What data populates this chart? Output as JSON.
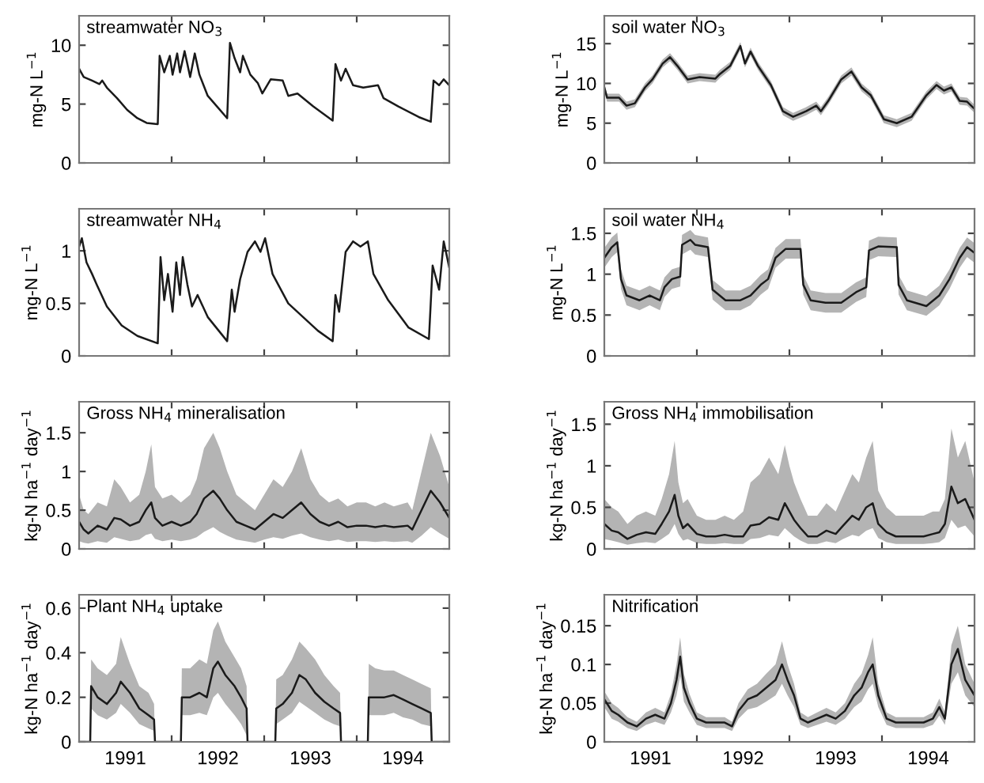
{
  "chart_data": [
    {
      "type": "line",
      "title": "streamwater NO$_{3}$",
      "ylabel": "mg-N L$^{−1}$",
      "xlim": [
        1991,
        1995
      ],
      "ylim": [
        0,
        12.5
      ],
      "yticks": [
        0,
        5,
        10
      ],
      "tick_labels": "y",
      "grid": false,
      "legend": false,
      "xticks": [
        {
          "value": 1992,
          "label": null
        },
        {
          "value": 1993,
          "label": null
        },
        {
          "value": 1994,
          "label": null
        }
      ],
      "series": [
        {
          "color": "#1a1a1a",
          "x": [
            1991.0,
            1991.05,
            1991.14,
            1991.22,
            1991.25,
            1991.3,
            1991.41,
            1991.52,
            1991.63,
            1991.73,
            1991.85,
            1991.87,
            1991.92,
            1991.98,
            1992.01,
            1992.06,
            1992.09,
            1992.14,
            1992.2,
            1992.25,
            1992.3,
            1992.39,
            1992.49,
            1992.6,
            1992.63,
            1992.68,
            1992.74,
            1992.77,
            1992.85,
            1992.93,
            1992.98,
            1993.07,
            1993.2,
            1993.26,
            1993.36,
            1993.53,
            1993.74,
            1993.77,
            1993.83,
            1993.88,
            1993.96,
            1994.07,
            1994.23,
            1994.29,
            1994.45,
            1994.67,
            1994.8,
            1994.83,
            1994.89,
            1994.94,
            1995.0
          ],
          "values": [
            8.0,
            7.3,
            7.0,
            6.7,
            7.0,
            6.4,
            5.5,
            4.5,
            3.8,
            3.4,
            3.3,
            9.1,
            7.7,
            9.1,
            7.5,
            9.3,
            7.7,
            9.5,
            7.3,
            9.3,
            7.5,
            5.7,
            4.8,
            3.8,
            10.2,
            8.9,
            7.7,
            9.1,
            7.5,
            6.8,
            5.9,
            7.1,
            7.0,
            5.7,
            5.9,
            4.8,
            3.6,
            8.4,
            7.0,
            8.0,
            6.6,
            6.4,
            6.6,
            5.5,
            4.8,
            3.9,
            3.5,
            7.0,
            6.6,
            7.1,
            6.6
          ]
        }
      ]
    },
    {
      "type": "line",
      "title": "soil water NO$_{3}$",
      "ylabel": "mg-N L$^{−1}$",
      "xlim": [
        1991,
        1995
      ],
      "ylim": [
        0,
        18.5
      ],
      "yticks": [
        0,
        5,
        10,
        15
      ],
      "tick_labels": "y",
      "grid": false,
      "legend": false,
      "xticks": [
        {
          "value": 1992,
          "label": null
        },
        {
          "value": 1993,
          "label": null
        },
        {
          "value": 1994,
          "label": null
        }
      ],
      "series": [
        {
          "color": "#1a1a1a",
          "x": [
            1991.0,
            1991.03,
            1991.16,
            1991.24,
            1991.33,
            1991.44,
            1991.52,
            1991.63,
            1991.71,
            1991.79,
            1991.9,
            1992.03,
            1992.2,
            1992.25,
            1992.36,
            1992.47,
            1992.52,
            1992.58,
            1992.66,
            1992.8,
            1992.93,
            1993.04,
            1993.18,
            1993.29,
            1993.34,
            1993.42,
            1993.56,
            1993.67,
            1993.78,
            1993.88,
            1994.02,
            1994.16,
            1994.32,
            1994.48,
            1994.59,
            1994.67,
            1994.75,
            1994.84,
            1994.92,
            1995.0
          ],
          "values": [
            9.5,
            8.2,
            8.2,
            7.2,
            7.5,
            9.5,
            10.5,
            12.5,
            13.3,
            12.2,
            10.5,
            10.8,
            10.6,
            11.2,
            12.2,
            14.7,
            12.5,
            14.0,
            12.2,
            9.8,
            6.5,
            5.8,
            6.5,
            7.2,
            6.5,
            7.8,
            10.5,
            11.5,
            9.5,
            8.5,
            5.5,
            5.0,
            5.8,
            8.5,
            9.8,
            9.1,
            9.5,
            7.8,
            7.7,
            6.8
          ],
          "lower": [
            9.0,
            7.7,
            7.7,
            6.7,
            7.0,
            9.0,
            10.0,
            12.0,
            12.8,
            11.7,
            10.0,
            10.3,
            10.1,
            10.7,
            11.7,
            14.2,
            12.0,
            13.5,
            11.7,
            9.3,
            6.0,
            5.3,
            6.0,
            6.7,
            6.0,
            7.3,
            10.0,
            11.0,
            9.0,
            8.0,
            5.0,
            4.5,
            5.3,
            8.0,
            9.3,
            8.6,
            9.0,
            7.3,
            7.2,
            6.3
          ],
          "upper": [
            10.0,
            8.7,
            8.7,
            7.7,
            8.0,
            10.0,
            11.0,
            13.0,
            13.8,
            12.7,
            11.0,
            11.3,
            11.1,
            11.7,
            12.7,
            15.2,
            13.0,
            14.5,
            12.7,
            10.3,
            7.0,
            6.3,
            7.0,
            7.7,
            7.0,
            8.3,
            11.0,
            12.0,
            10.0,
            9.0,
            6.0,
            5.5,
            6.3,
            9.0,
            10.3,
            9.6,
            10.0,
            8.3,
            8.2,
            7.3
          ]
        }
      ]
    },
    {
      "type": "line",
      "title": "streamwater NH$_{4}$",
      "ylabel": "mg-N L$^{−1}$",
      "xlim": [
        1991,
        1995
      ],
      "ylim": [
        0,
        1.4
      ],
      "yticks": [
        0,
        0.5,
        1
      ],
      "tick_labels": "y",
      "grid": false,
      "legend": false,
      "xticks": [
        {
          "value": 1992,
          "label": null
        },
        {
          "value": 1993,
          "label": null
        },
        {
          "value": 1994,
          "label": null
        }
      ],
      "series": [
        {
          "color": "#1a1a1a",
          "x": [
            1991.0,
            1991.03,
            1991.08,
            1991.14,
            1991.19,
            1991.3,
            1991.46,
            1991.63,
            1991.85,
            1991.88,
            1991.92,
            1991.96,
            1992.01,
            1992.05,
            1992.09,
            1992.12,
            1992.17,
            1992.22,
            1992.28,
            1992.39,
            1992.6,
            1992.65,
            1992.68,
            1992.74,
            1992.82,
            1992.9,
            1992.96,
            1993.01,
            1993.09,
            1993.26,
            1993.42,
            1993.58,
            1993.74,
            1993.77,
            1993.81,
            1993.88,
            1993.96,
            1994.04,
            1994.12,
            1994.18,
            1994.34,
            1994.56,
            1994.78,
            1994.82,
            1994.89,
            1994.94,
            1995.0
          ],
          "values": [
            1.04,
            1.12,
            0.89,
            0.78,
            0.68,
            0.47,
            0.29,
            0.19,
            0.12,
            0.94,
            0.53,
            0.78,
            0.42,
            0.89,
            0.58,
            0.94,
            0.68,
            0.47,
            0.58,
            0.37,
            0.14,
            0.63,
            0.42,
            0.73,
            0.99,
            1.09,
            0.99,
            1.12,
            0.78,
            0.5,
            0.37,
            0.24,
            0.14,
            0.58,
            0.42,
            0.99,
            1.09,
            1.04,
            1.09,
            0.78,
            0.53,
            0.27,
            0.16,
            0.86,
            0.63,
            1.09,
            0.84
          ]
        }
      ]
    },
    {
      "type": "line",
      "title": "soil water NH$_{4}$",
      "ylabel": "mg-N L$^{−1}$",
      "xlim": [
        1991,
        1995
      ],
      "ylim": [
        0,
        1.8
      ],
      "yticks": [
        0,
        0.5,
        1,
        1.5
      ],
      "tick_labels": "y",
      "grid": false,
      "legend": false,
      "xticks": [
        {
          "value": 1992,
          "label": null
        },
        {
          "value": 1993,
          "label": null
        },
        {
          "value": 1994,
          "label": null
        }
      ],
      "series": [
        {
          "color": "#1a1a1a",
          "x": [
            1991.0,
            1991.08,
            1991.14,
            1991.18,
            1991.24,
            1991.38,
            1991.49,
            1991.6,
            1991.65,
            1991.73,
            1991.82,
            1991.84,
            1991.93,
            1991.98,
            1992.12,
            1992.17,
            1992.31,
            1992.47,
            1992.58,
            1992.69,
            1992.77,
            1992.85,
            1992.96,
            1993.12,
            1993.15,
            1993.23,
            1993.39,
            1993.56,
            1993.72,
            1993.83,
            1993.86,
            1993.96,
            1994.16,
            1994.18,
            1994.27,
            1994.48,
            1994.62,
            1994.73,
            1994.84,
            1994.92,
            1995.0
          ],
          "values": [
            1.2,
            1.33,
            1.39,
            0.94,
            0.74,
            0.68,
            0.74,
            0.68,
            0.84,
            0.94,
            0.97,
            1.36,
            1.42,
            1.36,
            1.33,
            0.81,
            0.68,
            0.68,
            0.74,
            0.87,
            0.94,
            1.2,
            1.31,
            1.31,
            0.87,
            0.68,
            0.65,
            0.65,
            0.78,
            0.84,
            1.29,
            1.34,
            1.33,
            0.87,
            0.68,
            0.61,
            0.74,
            0.94,
            1.2,
            1.33,
            1.26
          ],
          "lower": [
            1.08,
            1.21,
            1.27,
            0.82,
            0.62,
            0.56,
            0.62,
            0.56,
            0.72,
            0.82,
            0.85,
            1.24,
            1.3,
            1.24,
            1.21,
            0.69,
            0.56,
            0.56,
            0.62,
            0.75,
            0.82,
            1.08,
            1.19,
            1.19,
            0.75,
            0.56,
            0.53,
            0.53,
            0.66,
            0.72,
            1.17,
            1.22,
            1.21,
            0.75,
            0.56,
            0.49,
            0.62,
            0.82,
            1.08,
            1.21,
            1.14
          ],
          "upper": [
            1.32,
            1.45,
            1.51,
            1.06,
            0.86,
            0.8,
            0.86,
            0.8,
            0.96,
            1.06,
            1.09,
            1.48,
            1.54,
            1.48,
            1.45,
            0.93,
            0.8,
            0.8,
            0.86,
            0.99,
            1.06,
            1.32,
            1.43,
            1.43,
            0.99,
            0.8,
            0.77,
            0.77,
            0.9,
            0.96,
            1.41,
            1.46,
            1.45,
            0.99,
            0.8,
            0.73,
            0.86,
            1.06,
            1.32,
            1.45,
            1.38
          ]
        }
      ]
    },
    {
      "type": "line",
      "title": "Gross NH$_{4}$ mineralisation",
      "ylabel": "kg-N ha$^{−1}$ day$^{−1}$",
      "xlim": [
        1991,
        1995
      ],
      "ylim": [
        0,
        1.9
      ],
      "yticks": [
        0,
        0.5,
        1,
        1.5
      ],
      "tick_labels": "y",
      "grid": false,
      "legend": false,
      "xticks": [
        {
          "value": 1992,
          "label": null
        },
        {
          "value": 1993,
          "label": null
        },
        {
          "value": 1994,
          "label": null
        }
      ],
      "series": [
        {
          "color": "#1a1a1a",
          "x": [
            1991.0,
            1991.05,
            1991.1,
            1991.2,
            1991.3,
            1991.38,
            1991.45,
            1991.55,
            1991.65,
            1991.72,
            1991.78,
            1991.82,
            1991.9,
            1992.0,
            1992.1,
            1992.2,
            1992.27,
            1992.35,
            1992.45,
            1992.52,
            1992.6,
            1992.7,
            1992.8,
            1992.9,
            1993.0,
            1993.1,
            1993.2,
            1993.3,
            1993.4,
            1993.5,
            1993.6,
            1993.7,
            1993.8,
            1993.9,
            1994.0,
            1994.1,
            1994.2,
            1994.3,
            1994.4,
            1994.55,
            1994.6,
            1994.7,
            1994.8,
            1994.9,
            1995.0
          ],
          "values": [
            0.35,
            0.25,
            0.2,
            0.3,
            0.25,
            0.4,
            0.38,
            0.3,
            0.35,
            0.5,
            0.6,
            0.4,
            0.3,
            0.35,
            0.3,
            0.35,
            0.45,
            0.65,
            0.75,
            0.65,
            0.5,
            0.35,
            0.3,
            0.25,
            0.35,
            0.45,
            0.4,
            0.5,
            0.6,
            0.45,
            0.35,
            0.3,
            0.35,
            0.28,
            0.3,
            0.3,
            0.28,
            0.3,
            0.28,
            0.3,
            0.25,
            0.5,
            0.75,
            0.6,
            0.4
          ],
          "lower": [
            0.1,
            0.08,
            0.07,
            0.1,
            0.08,
            0.15,
            0.13,
            0.1,
            0.12,
            0.18,
            0.2,
            0.13,
            0.1,
            0.12,
            0.1,
            0.12,
            0.15,
            0.22,
            0.28,
            0.22,
            0.17,
            0.12,
            0.1,
            0.08,
            0.12,
            0.15,
            0.13,
            0.17,
            0.2,
            0.15,
            0.12,
            0.1,
            0.12,
            0.09,
            0.1,
            0.1,
            0.09,
            0.1,
            0.09,
            0.1,
            0.08,
            0.17,
            0.28,
            0.2,
            0.13
          ],
          "upper": [
            0.7,
            0.5,
            0.45,
            0.6,
            0.55,
            0.9,
            0.8,
            0.6,
            0.7,
            1.0,
            1.35,
            0.8,
            0.65,
            0.7,
            0.6,
            0.7,
            0.9,
            1.3,
            1.5,
            1.3,
            1.0,
            0.7,
            0.6,
            0.5,
            0.7,
            0.9,
            0.8,
            1.0,
            1.3,
            0.9,
            0.7,
            0.6,
            0.65,
            0.55,
            0.6,
            0.6,
            0.55,
            0.6,
            0.55,
            0.6,
            0.5,
            1.0,
            1.5,
            1.2,
            0.8
          ]
        }
      ]
    },
    {
      "type": "line",
      "title": "Gross NH$_{4}$ immobilisation",
      "ylabel": "kg-N ha$^{−1}$ day$^{−1}$",
      "xlim": [
        1991,
        1995
      ],
      "ylim": [
        0,
        1.77
      ],
      "yticks": [
        0,
        0.5,
        1,
        1.5
      ],
      "tick_labels": "y",
      "grid": false,
      "legend": false,
      "xticks": [
        {
          "value": 1992,
          "label": null
        },
        {
          "value": 1993,
          "label": null
        },
        {
          "value": 1994,
          "label": null
        }
      ],
      "series": [
        {
          "color": "#1a1a1a",
          "x": [
            1991.0,
            1991.08,
            1991.15,
            1991.25,
            1991.35,
            1991.45,
            1991.55,
            1991.62,
            1991.7,
            1991.76,
            1991.8,
            1991.85,
            1991.9,
            1992.0,
            1992.1,
            1992.2,
            1992.3,
            1992.4,
            1992.5,
            1992.58,
            1992.68,
            1992.78,
            1992.88,
            1992.95,
            1993.0,
            1993.05,
            1993.12,
            1993.2,
            1993.3,
            1993.4,
            1993.5,
            1993.58,
            1993.68,
            1993.75,
            1993.83,
            1993.9,
            1993.96,
            1994.05,
            1994.15,
            1994.3,
            1994.45,
            1994.55,
            1994.62,
            1994.68,
            1994.75,
            1994.82,
            1994.9,
            1995.0
          ],
          "values": [
            0.3,
            0.22,
            0.2,
            0.12,
            0.17,
            0.2,
            0.18,
            0.3,
            0.45,
            0.65,
            0.4,
            0.25,
            0.3,
            0.18,
            0.15,
            0.15,
            0.17,
            0.15,
            0.15,
            0.28,
            0.3,
            0.38,
            0.35,
            0.55,
            0.45,
            0.35,
            0.25,
            0.15,
            0.15,
            0.22,
            0.18,
            0.28,
            0.4,
            0.35,
            0.5,
            0.55,
            0.3,
            0.2,
            0.15,
            0.15,
            0.15,
            0.18,
            0.2,
            0.3,
            0.75,
            0.55,
            0.6,
            0.35
          ],
          "lower": [
            0.12,
            0.1,
            0.08,
            0.05,
            0.07,
            0.08,
            0.07,
            0.12,
            0.18,
            0.3,
            0.18,
            0.1,
            0.12,
            0.07,
            0.06,
            0.06,
            0.07,
            0.06,
            0.06,
            0.12,
            0.13,
            0.17,
            0.15,
            0.25,
            0.2,
            0.15,
            0.1,
            0.06,
            0.06,
            0.09,
            0.07,
            0.12,
            0.17,
            0.15,
            0.22,
            0.25,
            0.13,
            0.08,
            0.06,
            0.06,
            0.06,
            0.07,
            0.08,
            0.13,
            0.35,
            0.25,
            0.28,
            0.15
          ],
          "upper": [
            0.6,
            0.5,
            0.45,
            0.3,
            0.4,
            0.45,
            0.4,
            0.6,
            0.9,
            1.3,
            0.8,
            0.55,
            0.6,
            0.4,
            0.35,
            0.35,
            0.4,
            0.35,
            0.45,
            0.8,
            0.9,
            1.1,
            0.9,
            1.25,
            1.0,
            0.8,
            0.6,
            0.4,
            0.4,
            0.55,
            0.45,
            0.65,
            0.9,
            0.8,
            1.1,
            1.3,
            0.7,
            0.5,
            0.4,
            0.4,
            0.4,
            0.45,
            0.45,
            0.6,
            1.45,
            1.1,
            1.3,
            0.8
          ]
        }
      ]
    },
    {
      "type": "line",
      "title": "Plant NH$_{4}$ uptake",
      "ylabel": "kg-N ha$^{−1}$ day$^{−1}$",
      "xlim": [
        1991,
        1995
      ],
      "ylim": [
        0,
        0.66
      ],
      "yticks": [
        0,
        0.2,
        0.4,
        0.6
      ],
      "grid": false,
      "legend": false,
      "xticks": [
        {
          "value": 1991.5,
          "label": "1991"
        },
        {
          "value": 1992,
          "label": null
        },
        {
          "value": 1992.5,
          "label": "1992"
        },
        {
          "value": 1993,
          "label": null
        },
        {
          "value": 1993.5,
          "label": "1993"
        },
        {
          "value": 1994,
          "label": null
        },
        {
          "value": 1994.5,
          "label": "1994"
        }
      ],
      "series": [
        {
          "color": "#1a1a1a",
          "x": [
            1991.0,
            1991.12,
            1991.13,
            1991.2,
            1991.3,
            1991.4,
            1991.45,
            1991.55,
            1991.65,
            1991.75,
            1991.81,
            1991.82,
            1992.1,
            1992.11,
            1992.2,
            1992.3,
            1992.38,
            1992.45,
            1992.5,
            1992.58,
            1992.68,
            1992.75,
            1992.81,
            1992.82,
            1993.12,
            1993.13,
            1993.2,
            1993.3,
            1993.38,
            1993.45,
            1993.55,
            1993.65,
            1993.75,
            1993.82,
            1993.83,
            1994.12,
            1994.13,
            1994.2,
            1994.3,
            1994.4,
            1994.5,
            1994.6,
            1994.7,
            1994.8,
            1994.81,
            1995.0
          ],
          "values": [
            0,
            0,
            0.25,
            0.2,
            0.17,
            0.22,
            0.27,
            0.22,
            0.15,
            0.12,
            0.1,
            0,
            0,
            0.2,
            0.2,
            0.22,
            0.2,
            0.33,
            0.36,
            0.3,
            0.25,
            0.2,
            0.15,
            0,
            0,
            0.15,
            0.17,
            0.22,
            0.3,
            0.28,
            0.22,
            0.18,
            0.15,
            0.13,
            0,
            0,
            0.2,
            0.2,
            0.2,
            0.21,
            0.19,
            0.17,
            0.15,
            0.13,
            0,
            0
          ],
          "lower": [
            0,
            0,
            0.15,
            0.12,
            0.1,
            0.13,
            0.17,
            0.13,
            0.08,
            0.06,
            0.05,
            0,
            0,
            0.12,
            0.12,
            0.13,
            0.12,
            0.2,
            0.22,
            0.17,
            0.12,
            0.08,
            0.03,
            0,
            0,
            0.08,
            0.1,
            0.13,
            0.18,
            0.16,
            0.13,
            0.1,
            0.08,
            0.07,
            0,
            0,
            0.12,
            0.12,
            0.12,
            0.13,
            0.11,
            0.1,
            0.08,
            0.07,
            0,
            0
          ],
          "upper": [
            0,
            0,
            0.37,
            0.33,
            0.3,
            0.35,
            0.47,
            0.35,
            0.25,
            0.22,
            0.17,
            0,
            0,
            0.33,
            0.33,
            0.37,
            0.35,
            0.5,
            0.54,
            0.45,
            0.38,
            0.33,
            0.25,
            0,
            0,
            0.28,
            0.3,
            0.37,
            0.45,
            0.42,
            0.37,
            0.3,
            0.25,
            0.22,
            0,
            0,
            0.35,
            0.33,
            0.32,
            0.32,
            0.3,
            0.28,
            0.26,
            0.24,
            0,
            0
          ]
        }
      ]
    },
    {
      "type": "line",
      "title": "Nitrification",
      "ylabel": "kg-N ha$^{−1}$ day$^{−1}$",
      "xlim": [
        1991,
        1995
      ],
      "ylim": [
        0,
        0.19
      ],
      "yticks": [
        0,
        0.05,
        0.1,
        0.15
      ],
      "grid": false,
      "legend": false,
      "xticks": [
        {
          "value": 1991.5,
          "label": "1991"
        },
        {
          "value": 1992,
          "label": null
        },
        {
          "value": 1992.5,
          "label": "1992"
        },
        {
          "value": 1993,
          "label": null
        },
        {
          "value": 1993.5,
          "label": "1993"
        },
        {
          "value": 1994,
          "label": null
        },
        {
          "value": 1994.5,
          "label": "1994"
        }
      ],
      "series": [
        {
          "color": "#1a1a1a",
          "x": [
            1991.0,
            1991.08,
            1991.15,
            1991.25,
            1991.35,
            1991.45,
            1991.55,
            1991.65,
            1991.72,
            1991.78,
            1991.82,
            1991.86,
            1991.92,
            1992.0,
            1992.1,
            1992.2,
            1992.3,
            1992.38,
            1992.45,
            1992.55,
            1992.65,
            1992.75,
            1992.85,
            1992.92,
            1992.98,
            1993.05,
            1993.12,
            1993.2,
            1993.3,
            1993.4,
            1993.5,
            1993.6,
            1993.7,
            1993.78,
            1993.85,
            1993.9,
            1993.96,
            1994.05,
            1994.15,
            1994.3,
            1994.45,
            1994.55,
            1994.62,
            1994.68,
            1994.75,
            1994.82,
            1994.9,
            1995.0
          ],
          "values": [
            0.055,
            0.04,
            0.035,
            0.025,
            0.02,
            0.03,
            0.035,
            0.03,
            0.05,
            0.08,
            0.11,
            0.07,
            0.05,
            0.03,
            0.025,
            0.025,
            0.025,
            0.02,
            0.04,
            0.055,
            0.06,
            0.07,
            0.08,
            0.1,
            0.08,
            0.06,
            0.03,
            0.025,
            0.03,
            0.035,
            0.03,
            0.04,
            0.06,
            0.07,
            0.09,
            0.1,
            0.06,
            0.03,
            0.025,
            0.025,
            0.025,
            0.03,
            0.045,
            0.03,
            0.1,
            0.12,
            0.08,
            0.06
          ],
          "lower": [
            0.045,
            0.03,
            0.026,
            0.018,
            0.014,
            0.022,
            0.026,
            0.022,
            0.038,
            0.06,
            0.085,
            0.052,
            0.038,
            0.022,
            0.018,
            0.018,
            0.018,
            0.014,
            0.03,
            0.042,
            0.045,
            0.052,
            0.06,
            0.075,
            0.06,
            0.045,
            0.022,
            0.018,
            0.022,
            0.026,
            0.022,
            0.03,
            0.045,
            0.052,
            0.068,
            0.075,
            0.045,
            0.022,
            0.018,
            0.018,
            0.018,
            0.022,
            0.034,
            0.022,
            0.075,
            0.09,
            0.06,
            0.045
          ],
          "upper": [
            0.065,
            0.05,
            0.044,
            0.032,
            0.026,
            0.038,
            0.044,
            0.038,
            0.062,
            0.1,
            0.135,
            0.088,
            0.062,
            0.038,
            0.032,
            0.032,
            0.032,
            0.026,
            0.05,
            0.068,
            0.075,
            0.088,
            0.1,
            0.13,
            0.1,
            0.075,
            0.038,
            0.032,
            0.038,
            0.044,
            0.038,
            0.05,
            0.075,
            0.088,
            0.112,
            0.135,
            0.075,
            0.038,
            0.032,
            0.032,
            0.032,
            0.038,
            0.056,
            0.038,
            0.125,
            0.15,
            0.1,
            0.075
          ]
        }
      ]
    }
  ]
}
